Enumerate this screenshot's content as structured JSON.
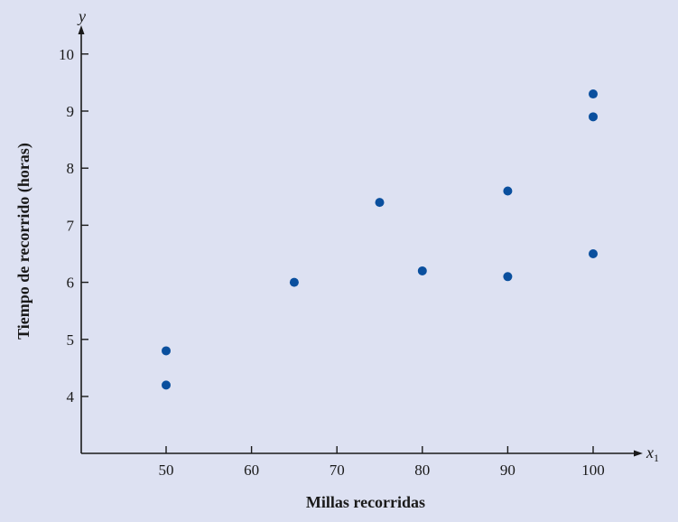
{
  "chart_data": {
    "type": "scatter",
    "title": "",
    "xlabel": "Millas recorridas",
    "ylabel": "Tiempo de recorrido (horas)",
    "x_axis_var": "x",
    "x_axis_sub": "1",
    "y_axis_var": "y",
    "xlim": [
      40,
      105
    ],
    "ylim": [
      3,
      10.5
    ],
    "xticks": [
      50,
      60,
      70,
      80,
      90,
      100
    ],
    "yticks": [
      4,
      5,
      6,
      7,
      8,
      9,
      10
    ],
    "grid": false,
    "point_color": "#0a4f9e",
    "points": [
      {
        "x": 50,
        "y": 4.8
      },
      {
        "x": 50,
        "y": 4.2
      },
      {
        "x": 65,
        "y": 6.0
      },
      {
        "x": 75,
        "y": 7.4
      },
      {
        "x": 80,
        "y": 6.2
      },
      {
        "x": 90,
        "y": 7.6
      },
      {
        "x": 90,
        "y": 6.1
      },
      {
        "x": 100,
        "y": 9.3
      },
      {
        "x": 100,
        "y": 8.9
      },
      {
        "x": 100,
        "y": 6.5
      }
    ]
  }
}
